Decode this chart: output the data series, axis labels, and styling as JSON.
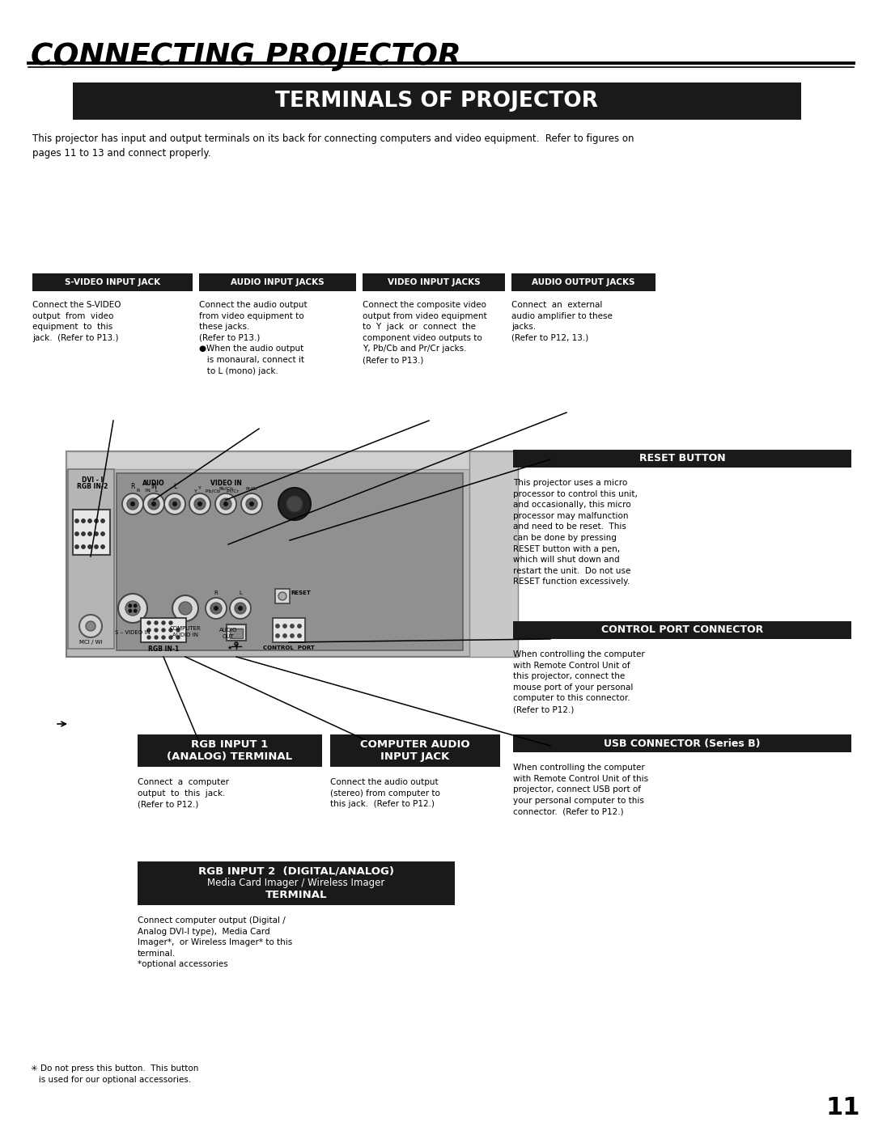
{
  "page_title": "CONNECTING PROJECTOR",
  "section_title": "TERMINALS OF PROJECTOR",
  "intro_text": "This projector has input and output terminals on its back for connecting computers and video equipment.  Refer to figures on\npages 11 to 13 and connect properly.",
  "label_svideo": "S-VIDEO INPUT JACK",
  "label_audio_in": "AUDIO INPUT JACKS",
  "label_video_in": "VIDEO INPUT JACKS",
  "label_audio_out": "AUDIO OUTPUT JACKS",
  "label_reset": "RESET BUTTON",
  "label_control_port": "CONTROL PORT CONNECTOR",
  "label_rgb1_l1": "RGB INPUT 1",
  "label_rgb1_l2": "(ANALOG) TERMINAL",
  "label_comp_audio_l1": "COMPUTER AUDIO",
  "label_comp_audio_l2": "INPUT JACK",
  "label_usb": "USB CONNECTOR (Series B)",
  "label_rgb2_l1": "RGB INPUT 2  (DIGITAL/ANALOG)",
  "label_rgb2_l2": "Media Card Imager / Wireless Imager",
  "label_rgb2_l3": "TERMINAL",
  "desc_svideo": "Connect the S-VIDEO\noutput  from  video\nequipment  to  this\njack.  (Refer to P13.)",
  "desc_audio_in": "Connect the audio output\nfrom video equipment to\nthese jacks.\n(Refer to P13.)\n●When the audio output\n   is monaural, connect it\n   to L (mono) jack.",
  "desc_video_in": "Connect the composite video\noutput from video equipment\nto  Y  jack  or  connect  the\ncomponent video outputs to\nY, Pb/Cb and Pr/Cr jacks.\n(Refer to P13.)",
  "desc_audio_out": "Connect  an  external\naudio amplifier to these\njacks.\n(Refer to P12, 13.)",
  "desc_reset": "This projector uses a micro\nprocessor to control this unit,\nand occasionally, this micro\nprocessor may malfunction\nand need to be reset.  This\ncan be done by pressing\nRESET button with a pen,\nwhich will shut down and\nrestart the unit.  Do not use\nRESET function excessively.",
  "desc_control_port": "When controlling the computer\nwith Remote Control Unit of\nthis projector, connect the\nmouse port of your personal\ncomputer to this connector.\n(Refer to P12.)",
  "desc_rgb1": "Connect  a  computer\noutput  to  this  jack.\n(Refer to P12.)",
  "desc_comp_audio": "Connect the audio output\n(stereo) from computer to\nthis jack.  (Refer to P12.)",
  "desc_usb": "When controlling the computer\nwith Remote Control Unit of this\nprojector, connect USB port of\nyour personal computer to this\nconnector.  (Refer to P12.)",
  "desc_rgb2": "Connect computer output (Digital /\nAnalog DVI-I type),  Media Card\nImager*,  or Wireless Imager* to this\nterminal.\n*optional accessories",
  "footnote": "✳ Do not press this button.  This button\n   is used for our optional accessories.",
  "page_num": "11",
  "bg_color": "#ffffff",
  "black": "#000000",
  "dark_gray": "#1a1a1a",
  "white": "#ffffff"
}
